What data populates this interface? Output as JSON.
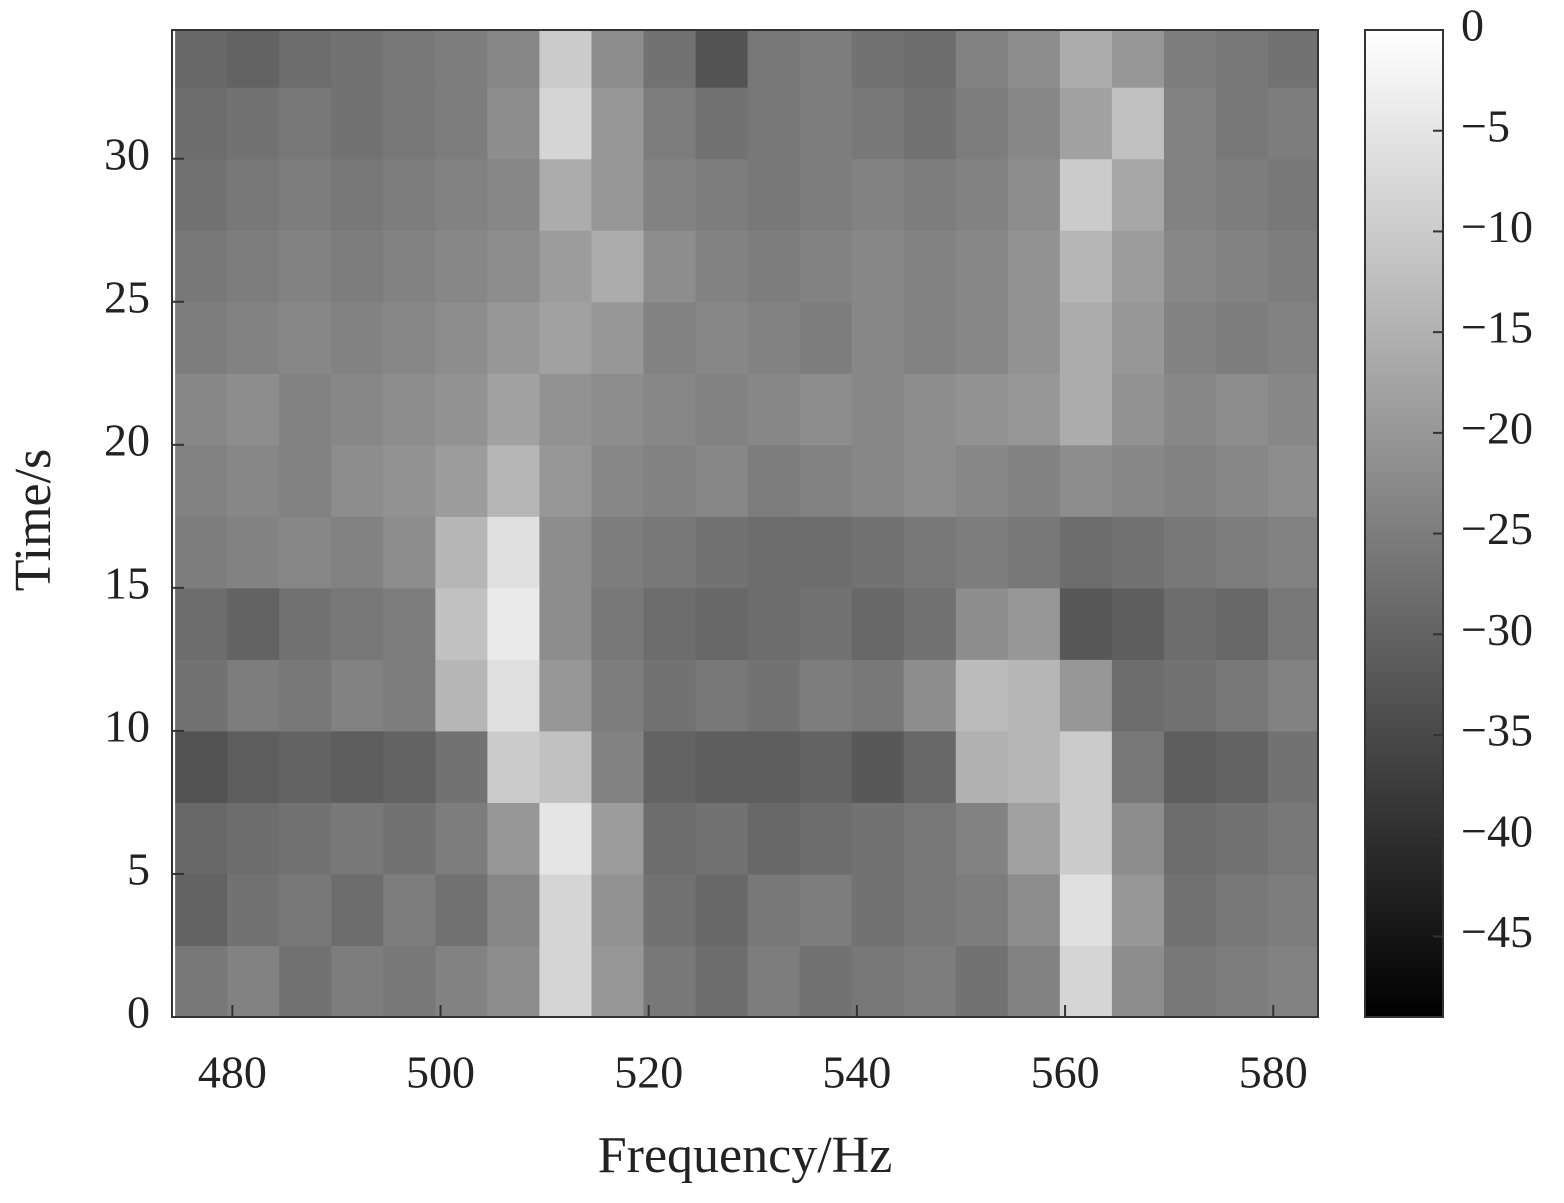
{
  "chart_data": {
    "type": "heatmap",
    "xlabel": "Frequency/Hz",
    "ylabel": "Time/s",
    "x": [
      477,
      482,
      487,
      492,
      497,
      502,
      507,
      512,
      517,
      522,
      527,
      532,
      537,
      542,
      547,
      552,
      557,
      562,
      567,
      572,
      577,
      582
    ],
    "y": [
      1.25,
      3.75,
      6.25,
      8.75,
      11.25,
      13.75,
      16.25,
      18.75,
      21.25,
      23.75,
      26.25,
      28.75,
      31.25,
      33.75
    ],
    "z": [
      [
        -26,
        -24,
        -27,
        -25,
        -26,
        -24,
        -22,
        -8,
        -20,
        -26,
        -28,
        -25,
        -27,
        -26,
        -25,
        -27,
        -24,
        -8,
        -22,
        -26,
        -25,
        -24
      ],
      [
        -30,
        -27,
        -26,
        -28,
        -25,
        -27,
        -23,
        -8,
        -21,
        -27,
        -29,
        -26,
        -25,
        -27,
        -26,
        -25,
        -22,
        -6,
        -20,
        -27,
        -26,
        -25
      ],
      [
        -29,
        -28,
        -27,
        -26,
        -27,
        -25,
        -20,
        -5,
        -19,
        -28,
        -27,
        -29,
        -28,
        -27,
        -26,
        -24,
        -18,
        -10,
        -22,
        -28,
        -27,
        -26
      ],
      [
        -33,
        -31,
        -30,
        -31,
        -30,
        -27,
        -10,
        -12,
        -24,
        -30,
        -31,
        -31,
        -30,
        -32,
        -29,
        -15,
        -14,
        -10,
        -26,
        -31,
        -30,
        -27
      ],
      [
        -27,
        -25,
        -26,
        -24,
        -25,
        -14,
        -6,
        -20,
        -25,
        -27,
        -26,
        -27,
        -25,
        -26,
        -22,
        -13,
        -14,
        -20,
        -28,
        -27,
        -26,
        -24
      ],
      [
        -28,
        -30,
        -27,
        -26,
        -25,
        -12,
        -4,
        -22,
        -26,
        -28,
        -29,
        -28,
        -27,
        -29,
        -27,
        -22,
        -20,
        -32,
        -31,
        -28,
        -29,
        -26
      ],
      [
        -25,
        -24,
        -23,
        -24,
        -22,
        -14,
        -6,
        -22,
        -25,
        -26,
        -27,
        -28,
        -28,
        -27,
        -26,
        -25,
        -26,
        -28,
        -27,
        -26,
        -25,
        -24
      ],
      [
        -24,
        -23,
        -24,
        -22,
        -21,
        -19,
        -14,
        -20,
        -23,
        -24,
        -23,
        -25,
        -24,
        -23,
        -22,
        -23,
        -24,
        -22,
        -23,
        -24,
        -23,
        -22
      ],
      [
        -23,
        -22,
        -24,
        -23,
        -22,
        -21,
        -18,
        -21,
        -22,
        -23,
        -24,
        -23,
        -22,
        -23,
        -22,
        -21,
        -20,
        -16,
        -21,
        -23,
        -22,
        -23
      ],
      [
        -25,
        -24,
        -23,
        -24,
        -23,
        -22,
        -20,
        -18,
        -20,
        -24,
        -23,
        -24,
        -25,
        -23,
        -24,
        -23,
        -21,
        -16,
        -20,
        -24,
        -25,
        -24
      ],
      [
        -26,
        -25,
        -24,
        -25,
        -24,
        -23,
        -22,
        -19,
        -16,
        -22,
        -24,
        -25,
        -24,
        -23,
        -24,
        -23,
        -21,
        -14,
        -19,
        -23,
        -24,
        -25
      ],
      [
        -27,
        -26,
        -25,
        -26,
        -25,
        -24,
        -23,
        -16,
        -20,
        -24,
        -25,
        -26,
        -25,
        -24,
        -25,
        -24,
        -22,
        -10,
        -17,
        -24,
        -25,
        -26
      ],
      [
        -28,
        -27,
        -26,
        -27,
        -26,
        -25,
        -22,
        -8,
        -20,
        -25,
        -27,
        -26,
        -25,
        -26,
        -27,
        -25,
        -23,
        -18,
        -12,
        -24,
        -26,
        -25
      ],
      [
        -29,
        -30,
        -28,
        -27,
        -26,
        -25,
        -23,
        -10,
        -22,
        -27,
        -33,
        -26,
        -25,
        -27,
        -28,
        -24,
        -22,
        -16,
        -20,
        -25,
        -26,
        -27
      ]
    ],
    "xlim": [
      474.2,
      584.3
    ],
    "xticks": [
      480,
      500,
      520,
      540,
      560,
      580
    ],
    "ylim": [
      0,
      34.5
    ],
    "yticks": [
      0,
      5,
      10,
      15,
      20,
      25,
      30
    ],
    "colormap": "gray",
    "clim": [
      -49,
      0
    ],
    "cticks": [
      0,
      {
        "value": -5,
        "label": "−5"
      },
      {
        "value": -10,
        "label": "−10"
      },
      {
        "value": -15,
        "label": "−15"
      },
      {
        "value": -20,
        "label": "−20"
      },
      {
        "value": -25,
        "label": "−25"
      },
      {
        "value": -30,
        "label": "−30"
      },
      {
        "value": -35,
        "label": "−35"
      },
      {
        "value": -40,
        "label": "−40"
      },
      {
        "value": -45,
        "label": "−45"
      }
    ]
  }
}
